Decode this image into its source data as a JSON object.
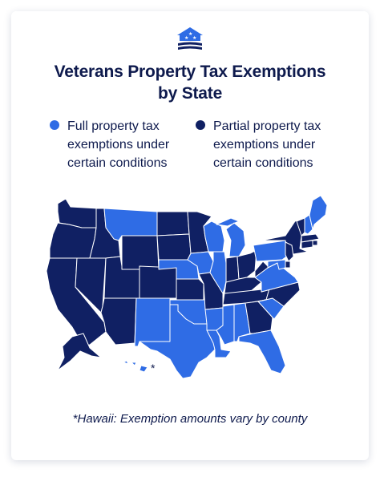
{
  "header": {
    "logo_icon": "house-flag-icon",
    "title_lines": [
      "Veterans Property Tax Exemptions",
      "by State"
    ]
  },
  "legend": {
    "full": {
      "color": "#2f6ce5",
      "lines": [
        "Full property tax",
        "exemptions under",
        "certain conditions"
      ]
    },
    "partial": {
      "color": "#102063",
      "lines": [
        "Partial property tax",
        "exemptions under",
        "certain conditions"
      ]
    }
  },
  "map": {
    "border_color": "#ffffff",
    "hawaii_marker": "*",
    "states": [
      {
        "code": "WA",
        "category": "partial"
      },
      {
        "code": "OR",
        "category": "partial"
      },
      {
        "code": "CA",
        "category": "partial"
      },
      {
        "code": "NV",
        "category": "partial"
      },
      {
        "code": "ID",
        "category": "partial"
      },
      {
        "code": "UT",
        "category": "partial"
      },
      {
        "code": "AZ",
        "category": "partial"
      },
      {
        "code": "MT",
        "category": "full"
      },
      {
        "code": "WY",
        "category": "partial"
      },
      {
        "code": "CO",
        "category": "partial"
      },
      {
        "code": "NM",
        "category": "full"
      },
      {
        "code": "ND",
        "category": "partial"
      },
      {
        "code": "SD",
        "category": "partial"
      },
      {
        "code": "NE",
        "category": "full"
      },
      {
        "code": "KS",
        "category": "partial"
      },
      {
        "code": "OK",
        "category": "full"
      },
      {
        "code": "TX",
        "category": "full"
      },
      {
        "code": "MN",
        "category": "partial"
      },
      {
        "code": "IA",
        "category": "full"
      },
      {
        "code": "MO",
        "category": "partial"
      },
      {
        "code": "AR",
        "category": "full"
      },
      {
        "code": "LA",
        "category": "full"
      },
      {
        "code": "WI",
        "category": "full"
      },
      {
        "code": "IL",
        "category": "full"
      },
      {
        "code": "MI",
        "category": "full"
      },
      {
        "code": "IN",
        "category": "partial"
      },
      {
        "code": "OH",
        "category": "partial"
      },
      {
        "code": "KY",
        "category": "partial"
      },
      {
        "code": "TN",
        "category": "partial"
      },
      {
        "code": "MS",
        "category": "full"
      },
      {
        "code": "AL",
        "category": "full"
      },
      {
        "code": "GA",
        "category": "partial"
      },
      {
        "code": "FL",
        "category": "full"
      },
      {
        "code": "SC",
        "category": "full"
      },
      {
        "code": "NC",
        "category": "partial"
      },
      {
        "code": "VA",
        "category": "full"
      },
      {
        "code": "WV",
        "category": "partial"
      },
      {
        "code": "PA",
        "category": "full"
      },
      {
        "code": "NY",
        "category": "partial"
      },
      {
        "code": "VT",
        "category": "partial"
      },
      {
        "code": "NH",
        "category": "full"
      },
      {
        "code": "ME",
        "category": "full"
      },
      {
        "code": "MA",
        "category": "partial"
      },
      {
        "code": "RI",
        "category": "partial"
      },
      {
        "code": "CT",
        "category": "partial"
      },
      {
        "code": "NJ",
        "category": "partial"
      },
      {
        "code": "DE",
        "category": "partial"
      },
      {
        "code": "MD",
        "category": "full"
      },
      {
        "code": "AK",
        "category": "partial"
      },
      {
        "code": "HI",
        "category": "full"
      }
    ]
  },
  "footnote": "*Hawaii: Exemption amounts vary by county"
}
